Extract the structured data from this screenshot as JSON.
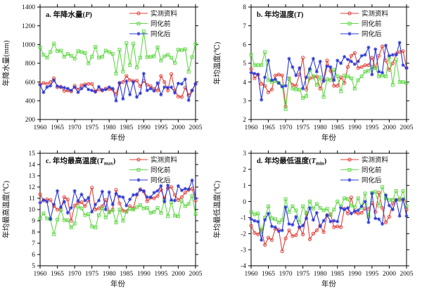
{
  "figure": {
    "xlabel": "年份",
    "xticks": [
      1960,
      1965,
      1970,
      1975,
      1980,
      1985,
      1990,
      1995,
      2000,
      2005
    ],
    "years": [
      1960,
      1961,
      1962,
      1963,
      1964,
      1965,
      1966,
      1967,
      1968,
      1969,
      1970,
      1971,
      1972,
      1973,
      1974,
      1975,
      1976,
      1977,
      1978,
      1979,
      1980,
      1981,
      1982,
      1983,
      1984,
      1985,
      1986,
      1987,
      1988,
      1989,
      1990,
      1991,
      1992,
      1993,
      1994,
      1995,
      1996,
      1997,
      1998,
      1999,
      2000,
      2001,
      2002,
      2003,
      2004,
      2005
    ],
    "colors": {
      "observed": "#e04038",
      "before": "#62d948",
      "after": "#2b38d8"
    },
    "legend": [
      {
        "label": "实测资料",
        "color": "observed",
        "marker": "circle"
      },
      {
        "label": "同化前",
        "color": "before",
        "marker": "square"
      },
      {
        "label": "同化后",
        "color": "after",
        "marker": "asterisk"
      }
    ]
  },
  "chart_data": [
    {
      "type": "line",
      "title": {
        "prefix": "a. 年降水量(",
        "variable": "P",
        "subscript": "",
        "suffix": ")"
      },
      "ylabel": "年降水量(mm)",
      "ylim": [
        200,
        1400
      ],
      "yticks": [
        200,
        400,
        600,
        800,
        1000,
        1200,
        1400
      ],
      "series": [
        {
          "name": "实测资料",
          "color": "observed",
          "marker": "circle",
          "values": [
            575,
            590,
            580,
            600,
            640,
            545,
            550,
            505,
            510,
            500,
            560,
            520,
            565,
            575,
            580,
            580,
            500,
            520,
            510,
            530,
            525,
            520,
            470,
            590,
            600,
            665,
            620,
            610,
            615,
            555,
            610,
            570,
            555,
            525,
            510,
            665,
            600,
            510,
            685,
            510,
            445,
            440,
            540,
            460,
            510,
            580
          ]
        },
        {
          "name": "同化前",
          "color": "before",
          "marker": "square",
          "values": [
            970,
            890,
            860,
            920,
            1010,
            930,
            935,
            870,
            900,
            880,
            850,
            930,
            920,
            910,
            800,
            870,
            975,
            860,
            870,
            935,
            920,
            900,
            690,
            945,
            710,
            1015,
            780,
            1010,
            755,
            860,
            1140,
            865,
            870,
            875,
            970,
            830,
            875,
            890,
            860,
            805,
            945,
            940,
            950,
            710,
            865,
            1005
          ]
        },
        {
          "name": "同化后",
          "color": "after",
          "marker": "asterisk",
          "values": [
            570,
            490,
            545,
            560,
            620,
            555,
            545,
            540,
            530,
            510,
            545,
            490,
            530,
            560,
            520,
            510,
            495,
            550,
            515,
            520,
            545,
            530,
            400,
            590,
            420,
            610,
            465,
            600,
            440,
            480,
            690,
            510,
            530,
            505,
            590,
            465,
            545,
            540,
            545,
            485,
            585,
            580,
            630,
            405,
            510,
            580
          ]
        }
      ]
    },
    {
      "type": "line",
      "title": {
        "prefix": "b. 年均温度(",
        "variable": "T",
        "subscript": "",
        "suffix": ")"
      },
      "ylabel": "年均温度(℃)",
      "ylim": [
        2,
        8
      ],
      "yticks": [
        2,
        3,
        4,
        5,
        6,
        7,
        8
      ],
      "series": [
        {
          "name": "实测资料",
          "color": "observed",
          "marker": "circle",
          "values": [
            4.7,
            4.2,
            4.4,
            3.9,
            3.8,
            3.45,
            3.6,
            4.35,
            4.4,
            4.35,
            2.7,
            4.15,
            3.85,
            3.8,
            4.4,
            5.3,
            3.6,
            4.2,
            4.25,
            4.3,
            3.65,
            4.1,
            5.15,
            4.6,
            3.8,
            3.8,
            4.25,
            3.95,
            4.8,
            5.4,
            5.55,
            4.75,
            4.8,
            4.9,
            4.9,
            5.3,
            4.75,
            5.4,
            5.9,
            5.15,
            4.65,
            5.0,
            5.5,
            5.6,
            5.65,
            4.75
          ]
        },
        {
          "name": "同化前",
          "color": "before",
          "marker": "square",
          "values": [
            5.45,
            4.9,
            4.9,
            4.9,
            5.6,
            4.1,
            4.0,
            4.05,
            3.95,
            3.8,
            2.55,
            4.2,
            3.65,
            3.6,
            3.6,
            3.15,
            3.25,
            4.65,
            4.3,
            3.85,
            4.25,
            3.2,
            4.15,
            4.1,
            4.65,
            4.3,
            3.5,
            4.35,
            4.3,
            4.2,
            3.65,
            4.1,
            4.3,
            4.55,
            4.6,
            4.8,
            4.75,
            4.3,
            4.35,
            4.3,
            5.35,
            3.85,
            5.2,
            4.0,
            4.0,
            3.95
          ]
        },
        {
          "name": "同化后",
          "color": "after",
          "marker": "asterisk",
          "values": [
            4.5,
            4.45,
            4.4,
            3.05,
            4.25,
            5.15,
            4.1,
            4.15,
            3.95,
            3.75,
            3.8,
            5.25,
            4.8,
            4.35,
            4.75,
            3.65,
            4.25,
            4.7,
            5.25,
            4.55,
            5.1,
            4.05,
            4.85,
            4.8,
            4.1,
            5.15,
            5.0,
            5.35,
            5.2,
            5.1,
            4.95,
            5.1,
            5.4,
            5.45,
            5.85,
            4.4,
            5.75,
            4.55,
            4.5,
            5.95,
            5.4,
            5.45,
            5.45,
            6.1,
            4.9,
            4.75
          ]
        }
      ]
    },
    {
      "type": "line",
      "title": {
        "prefix": "c. 年均最高温度(",
        "variable": "T",
        "subscript": "max",
        "suffix": ")"
      },
      "ylabel": "年均最高温度(℃)",
      "ylim": [
        5,
        15
      ],
      "yticks": [
        5,
        6,
        7,
        8,
        9,
        10,
        11,
        12,
        13,
        14,
        15
      ],
      "series": [
        {
          "name": "实测资料",
          "color": "observed",
          "marker": "circle",
          "values": [
            11.35,
            10.8,
            10.9,
            10.85,
            10.3,
            10.0,
            10.05,
            11.1,
            10.9,
            9.0,
            10.35,
            10.6,
            10.65,
            10.3,
            10.8,
            11.95,
            10.0,
            10.1,
            10.3,
            10.85,
            9.8,
            10.0,
            11.75,
            10.55,
            9.9,
            9.85,
            10.3,
            10.1,
            11.3,
            11.8,
            11.6,
            10.75,
            11.05,
            11.0,
            11.2,
            11.75,
            11.0,
            11.9,
            12.0,
            11.3,
            10.85,
            11.1,
            11.5,
            11.75,
            11.85,
            10.8
          ]
        },
        {
          "name": "同化前",
          "color": "before",
          "marker": "square",
          "values": [
            9.2,
            9.65,
            9.2,
            9.15,
            7.8,
            9.1,
            9.95,
            9.05,
            9.05,
            8.4,
            8.75,
            10.25,
            10.1,
            9.5,
            9.6,
            8.5,
            8.4,
            9.5,
            10.1,
            9.3,
            9.75,
            9.95,
            8.85,
            10.0,
            9.0,
            9.8,
            10.05,
            10.0,
            10.2,
            10.4,
            10.1,
            10.15,
            9.7,
            9.8,
            10.15,
            9.7,
            10.8,
            9.4,
            10.65,
            9.45,
            9.4,
            10.75,
            10.3,
            10.5,
            11.2,
            9.6
          ]
        },
        {
          "name": "同化后",
          "color": "after",
          "marker": "asterisk",
          "values": [
            10.6,
            10.85,
            10.7,
            9.15,
            10.45,
            11.65,
            10.2,
            10.7,
            9.7,
            10.15,
            11.65,
            10.75,
            11.35,
            10.8,
            11.05,
            9.8,
            10.45,
            10.8,
            11.6,
            10.0,
            11.55,
            10.45,
            11.4,
            11.15,
            11.1,
            10.35,
            10.9,
            11.3,
            11.35,
            11.75,
            11.65,
            11.1,
            11.1,
            11.5,
            11.65,
            12.1,
            10.7,
            12.15,
            10.85,
            10.8,
            12.1,
            11.7,
            11.85,
            11.8,
            12.6,
            11.0
          ]
        }
      ]
    },
    {
      "type": "line",
      "title": {
        "prefix": "d. 年均最低温度(",
        "variable": "T",
        "subscript": "min",
        "suffix": ")"
      },
      "ylabel": "年均最低温度(℃)",
      "ylim": [
        -4,
        3
      ],
      "yticks": [
        -4,
        -3,
        -2,
        -1,
        0,
        1,
        2,
        3
      ],
      "series": [
        {
          "name": "实测资料",
          "color": "observed",
          "marker": "circle",
          "values": [
            -1.5,
            -1.95,
            -2.05,
            -1.75,
            -2.7,
            -2.25,
            -2.4,
            -1.7,
            -1.75,
            -3.1,
            -2.3,
            -1.8,
            -2.15,
            -2.1,
            -1.6,
            -2.05,
            -0.7,
            -2.35,
            -2.0,
            -1.8,
            -1.5,
            -1.9,
            -0.85,
            -0.8,
            -1.6,
            -1.55,
            -1.6,
            -0.45,
            -0.75,
            0.25,
            -0.65,
            -0.75,
            -0.7,
            -0.45,
            -0.45,
            -0.1,
            -0.65,
            0.55,
            -0.4,
            -1.3,
            -0.95,
            -0.1,
            0.1,
            0.15,
            0.1,
            -0.5
          ]
        },
        {
          "name": "同化前",
          "color": "before",
          "marker": "square",
          "values": [
            -0.65,
            -0.8,
            -0.75,
            -2.0,
            -1.0,
            -0.3,
            -1.05,
            -1.1,
            -1.3,
            -1.15,
            0.15,
            -0.65,
            -0.3,
            -0.55,
            -1.3,
            -0.3,
            -0.75,
            0.0,
            -0.45,
            -0.15,
            -0.4,
            -0.55,
            -0.45,
            -0.85,
            -0.5,
            0.0,
            -0.3,
            0.2,
            0.15,
            -0.25,
            -0.35,
            0.2,
            -0.4,
            0.5,
            -0.95,
            0.55,
            0.6,
            -0.25,
            0.9,
            0.2,
            0.1,
            0.1,
            0.65,
            0.1,
            0.65,
            -0.3
          ]
        },
        {
          "name": "同化后",
          "color": "after",
          "marker": "asterisk",
          "values": [
            -1.1,
            -1.2,
            -1.25,
            -2.4,
            -1.15,
            -0.75,
            -1.55,
            -1.6,
            -1.85,
            -1.8,
            -0.35,
            -1.4,
            -1.45,
            -0.95,
            -1.6,
            -1.5,
            -1.05,
            -0.4,
            -1.15,
            -0.7,
            -1.55,
            -1.2,
            -0.85,
            -1.25,
            -1.2,
            -1.25,
            -0.4,
            -0.5,
            -0.4,
            -0.75,
            -0.6,
            -0.55,
            -0.3,
            0.0,
            -1.3,
            0.5,
            -1.05,
            -1.1,
            -1.4,
            0.4,
            -0.25,
            -0.5,
            0.1,
            -0.9,
            0.15,
            -0.9
          ]
        }
      ]
    }
  ]
}
